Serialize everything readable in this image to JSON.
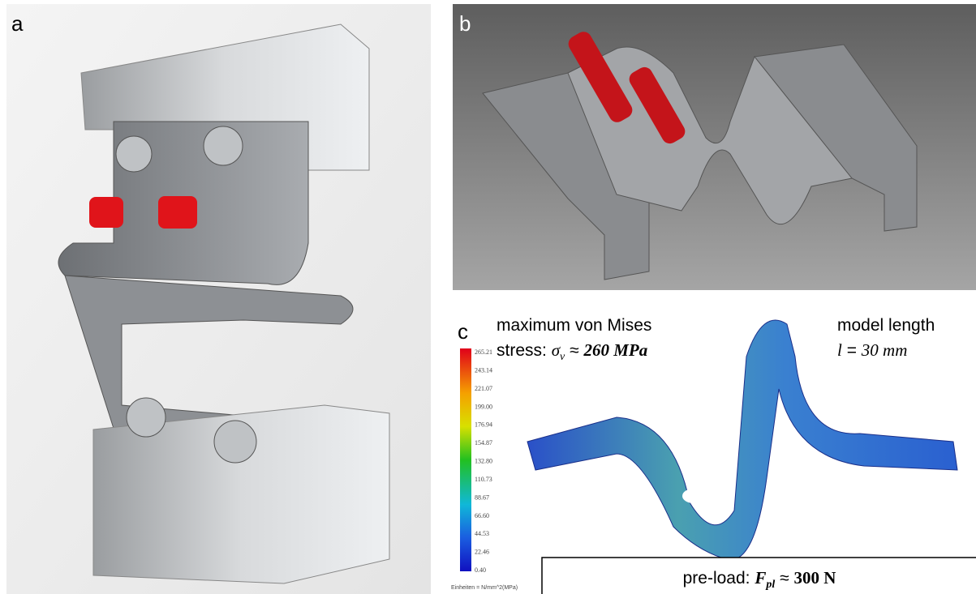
{
  "panels": {
    "a": {
      "label": "a"
    },
    "b": {
      "label": "b"
    },
    "c": {
      "label": "c",
      "colorbar": {
        "ticks": [
          "265.21",
          "243.14",
          "221.07",
          "199.00",
          "176.94",
          "154.87",
          "132.80",
          "110.73",
          "88.67",
          "66.60",
          "44.53",
          "22.46",
          "0.40"
        ],
        "units": "Einheiten = N/mm^2(MPa)"
      },
      "stress_note": {
        "line1": "maximum von Mises",
        "prefix": "stress:",
        "symbol": "σ",
        "subscript": "v",
        "relation": "≈",
        "amount": "260 MPa"
      },
      "length_note": {
        "line1": "model length",
        "symbol": "l",
        "relation": "=",
        "amount": "30 mm"
      },
      "preload_note": {
        "prefix": "pre-load:",
        "symbol": "F",
        "subscript": "pl",
        "relation": "≈",
        "amount": "300 N"
      }
    }
  }
}
